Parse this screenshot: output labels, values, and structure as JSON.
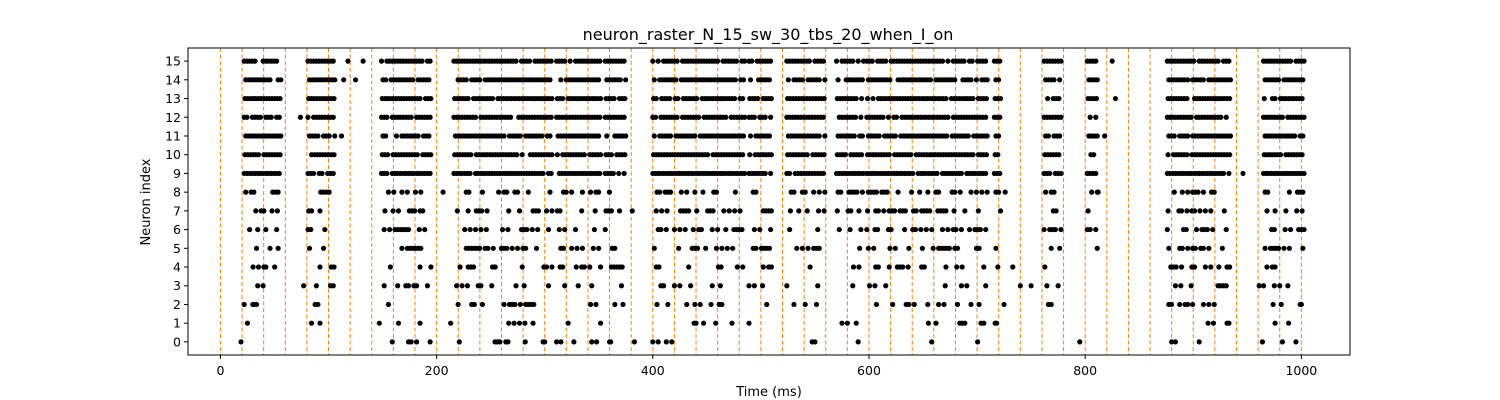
{
  "chart_data": {
    "type": "scatter",
    "title": "neuron_raster_N_15_sw_30_tbs_20_when_I_on",
    "xlabel": "Time (ms)",
    "ylabel": "Neuron index",
    "xlim": [
      -30,
      1045
    ],
    "ylim": [
      -0.7,
      15.7
    ],
    "xticks": [
      0,
      200,
      400,
      600,
      800,
      1000
    ],
    "yticks": [
      0,
      1,
      2,
      3,
      4,
      5,
      6,
      7,
      8,
      9,
      10,
      11,
      12,
      13,
      14,
      15
    ],
    "grid": false,
    "marker_color": "#000000",
    "vline_color": "#ff7f0e",
    "vlines_x": [
      0,
      20,
      40,
      60,
      80,
      100,
      120,
      140,
      160,
      180,
      200,
      220,
      240,
      260,
      280,
      300,
      320,
      340,
      360,
      380,
      400,
      420,
      440,
      460,
      480,
      500,
      520,
      540,
      560,
      580,
      600,
      620,
      640,
      660,
      680,
      700,
      720,
      740,
      760,
      780,
      800,
      820,
      840,
      860,
      880,
      900,
      920,
      940,
      960,
      980,
      1000
    ],
    "bursts": [
      {
        "start": 22,
        "end": 56,
        "step": 2.5
      },
      {
        "start": 81,
        "end": 106,
        "step": 2.6
      },
      {
        "start": 149,
        "end": 195,
        "step": 2.5
      },
      {
        "start": 216,
        "end": 307,
        "step": 2.5
      },
      {
        "start": 311,
        "end": 352,
        "step": 2.5
      },
      {
        "start": 356,
        "end": 375,
        "step": 2.5
      },
      {
        "start": 400,
        "end": 485,
        "step": 2.5
      },
      {
        "start": 489,
        "end": 510,
        "step": 2.5
      },
      {
        "start": 524,
        "end": 560,
        "step": 2.6
      },
      {
        "start": 570,
        "end": 595,
        "step": 2.5
      },
      {
        "start": 598,
        "end": 710,
        "step": 2.5
      },
      {
        "start": 716,
        "end": 722,
        "step": 2.5
      },
      {
        "start": 762,
        "end": 778,
        "step": 2.6
      },
      {
        "start": 802,
        "end": 812,
        "step": 2.6
      },
      {
        "start": 876,
        "end": 896,
        "step": 2.5
      },
      {
        "start": 898,
        "end": 935,
        "step": 2.5
      },
      {
        "start": 965,
        "end": 1003,
        "step": 2.5
      }
    ],
    "isolated_spikes": [
      {
        "x": 19,
        "y": 0
      },
      {
        "x": 25,
        "y": 1
      },
      {
        "x": 22,
        "y": 2
      },
      {
        "x": 30,
        "y": 2
      },
      {
        "x": 77,
        "y": 3
      },
      {
        "x": 42,
        "y": 4
      },
      {
        "x": 125,
        "y": 14
      },
      {
        "x": 132,
        "y": 15
      },
      {
        "x": 118,
        "y": 15
      },
      {
        "x": 114,
        "y": 14
      },
      {
        "x": 112,
        "y": 11
      },
      {
        "x": 74,
        "y": 12
      },
      {
        "x": 147,
        "y": 1
      },
      {
        "x": 206,
        "y": 8
      },
      {
        "x": 213,
        "y": 1
      },
      {
        "x": 381,
        "y": 7
      },
      {
        "x": 254,
        "y": 0
      },
      {
        "x": 264,
        "y": 0
      },
      {
        "x": 282,
        "y": 0
      },
      {
        "x": 300,
        "y": 0
      },
      {
        "x": 315,
        "y": 0
      },
      {
        "x": 327,
        "y": 0
      },
      {
        "x": 348,
        "y": 0
      },
      {
        "x": 360,
        "y": 0
      },
      {
        "x": 383,
        "y": 0
      },
      {
        "x": 400,
        "y": 0
      },
      {
        "x": 750,
        "y": 3
      },
      {
        "x": 740,
        "y": 3
      },
      {
        "x": 733,
        "y": 4
      },
      {
        "x": 726,
        "y": 8
      },
      {
        "x": 795,
        "y": 0
      },
      {
        "x": 825,
        "y": 15
      },
      {
        "x": 828,
        "y": 13
      },
      {
        "x": 818,
        "y": 11
      },
      {
        "x": 812,
        "y": 8
      },
      {
        "x": 933,
        "y": 1
      },
      {
        "x": 946,
        "y": 9
      },
      {
        "x": 961,
        "y": 3
      },
      {
        "x": 964,
        "y": 0
      },
      {
        "x": 880,
        "y": 0
      },
      {
        "x": 655,
        "y": 1
      },
      {
        "x": 662,
        "y": 1
      },
      {
        "x": 684,
        "y": 1
      },
      {
        "x": 718,
        "y": 1
      },
      {
        "x": 575,
        "y": 1
      },
      {
        "x": 580,
        "y": 1
      },
      {
        "x": 489,
        "y": 1
      },
      {
        "x": 440,
        "y": 1
      },
      {
        "x": 447,
        "y": 1
      },
      {
        "x": 590,
        "y": 0
      },
      {
        "x": 725,
        "y": 2
      },
      {
        "x": 1000,
        "y": 2
      }
    ]
  }
}
